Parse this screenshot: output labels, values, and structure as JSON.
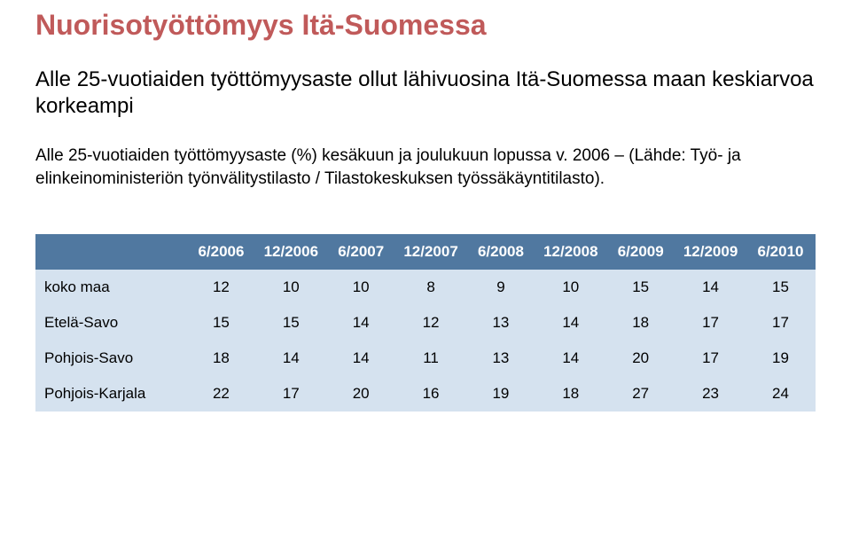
{
  "title": {
    "text": "Nuorisotyöttömyys Itä-Suomessa",
    "color": "#c05a5a"
  },
  "intro": "Alle 25-vuotiaiden työttömyysaste ollut lähivuosina Itä-Suomessa maan keskiarvoa korkeampi",
  "sourceline": "Alle 25-vuotiaiden työttömyysaste (%) kesäkuun ja joulukuun lopussa v. 2006 – (Lähde: Työ- ja elinkeinoministeriön työnvälitystilasto / Tilastokeskuksen työssäkäyntitilasto).",
  "table": {
    "header_bg": "#5078a0",
    "header_text_color": "#ffffff",
    "row_bg": "#d5e2ef",
    "cell_fontsize": 17,
    "columns": [
      "6/2006",
      "12/2006",
      "6/2007",
      "12/2007",
      "6/2008",
      "12/2008",
      "6/2009",
      "12/2009",
      "6/2010"
    ],
    "rows": [
      {
        "label": "koko maa",
        "values": [
          12,
          10,
          10,
          8,
          9,
          10,
          15,
          14,
          15
        ]
      },
      {
        "label": "Etelä-Savo",
        "values": [
          15,
          15,
          14,
          12,
          13,
          14,
          18,
          17,
          17
        ]
      },
      {
        "label": "Pohjois-Savo",
        "values": [
          18,
          14,
          14,
          11,
          13,
          14,
          20,
          17,
          19
        ]
      },
      {
        "label": "Pohjois-Karjala",
        "values": [
          22,
          17,
          20,
          16,
          19,
          18,
          27,
          23,
          24
        ]
      }
    ]
  }
}
